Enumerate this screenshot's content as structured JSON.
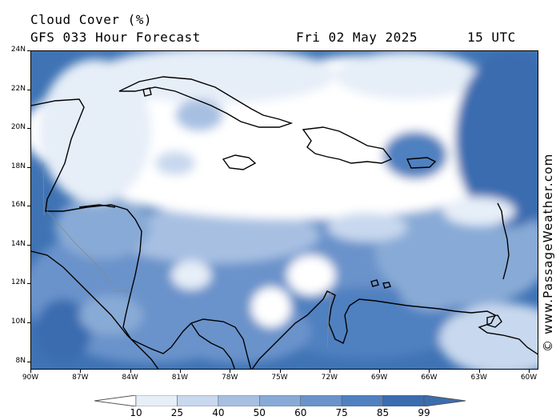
{
  "header": {
    "title": "Cloud Cover (%)",
    "subtitle": "GFS 033 Hour Forecast",
    "date": "Fri 02 May 2025",
    "time": "15 UTC"
  },
  "map": {
    "lat_labels": [
      "24N",
      "22N",
      "20N",
      "18N",
      "16N",
      "14N",
      "12N",
      "10N",
      "8N"
    ],
    "lon_labels": [
      "90W",
      "87W",
      "84W",
      "81W",
      "78W",
      "75W",
      "72W",
      "69W",
      "66W",
      "63W",
      "60W"
    ],
    "ocean_color": "#3f73b4",
    "coastline_color": "#000000"
  },
  "legend": {
    "labels": [
      "10",
      "25",
      "40",
      "50",
      "60",
      "75",
      "85",
      "99"
    ],
    "colors": [
      "#ffffff",
      "#e6eef8",
      "#c8d8ee",
      "#a7c0e2",
      "#88aad6",
      "#6a93cb",
      "#5080c0",
      "#3b6cb0"
    ]
  },
  "credit": "© www.PassageWeather.com"
}
